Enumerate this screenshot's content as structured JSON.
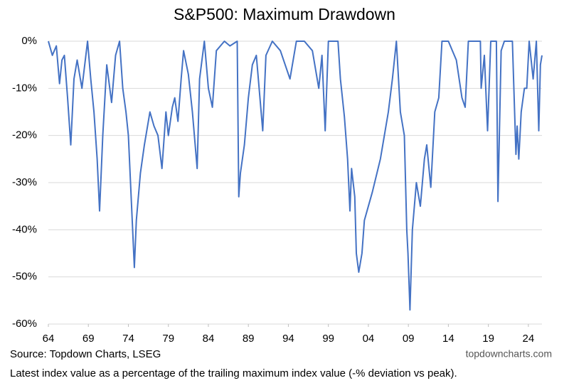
{
  "chart_data": {
    "type": "line",
    "title": "S&P500: Maximum Drawdown",
    "source": "Source: Topdown Charts, LSEG",
    "watermark": "topdowncharts.com",
    "note": "Latest index value as a percentage of the trailing maximum index value (-% deviation vs peak).",
    "color": "#4472c4",
    "grid": true,
    "xlim": [
      1964,
      2025.7
    ],
    "xticks": [
      {
        "value": 1964,
        "label": "64"
      },
      {
        "value": 1969,
        "label": "69"
      },
      {
        "value": 1974,
        "label": "74"
      },
      {
        "value": 1979,
        "label": "79"
      },
      {
        "value": 1984,
        "label": "84"
      },
      {
        "value": 1989,
        "label": "89"
      },
      {
        "value": 1994,
        "label": "94"
      },
      {
        "value": 1999,
        "label": "99"
      },
      {
        "value": 2004,
        "label": "04"
      },
      {
        "value": 2009,
        "label": "09"
      },
      {
        "value": 2014,
        "label": "14"
      },
      {
        "value": 2019,
        "label": "19"
      },
      {
        "value": 2024,
        "label": "24"
      }
    ],
    "ylim": [
      -60,
      0
    ],
    "yticks": [
      {
        "value": -60,
        "label": "-60%"
      },
      {
        "value": -50,
        "label": "-50%"
      },
      {
        "value": -40,
        "label": "-40%"
      },
      {
        "value": -30,
        "label": "-30%"
      },
      {
        "value": -20,
        "label": "-20%"
      },
      {
        "value": -10,
        "label": "-10%"
      },
      {
        "value": 0,
        "label": "0%"
      }
    ],
    "x": [
      1964,
      1964.5,
      1965,
      1965.4,
      1965.7,
      1966,
      1966.4,
      1966.8,
      1967.2,
      1967.6,
      1968.2,
      1968.9,
      1969.3,
      1969.7,
      1970.1,
      1970.4,
      1970.8,
      1971.3,
      1971.9,
      1972.4,
      1972.9,
      1973.3,
      1973.7,
      1974.0,
      1974.4,
      1974.75,
      1975.0,
      1975.5,
      1976.0,
      1976.7,
      1977.2,
      1977.7,
      1978.2,
      1978.7,
      1979.0,
      1979.5,
      1979.8,
      1980.2,
      1980.6,
      1980.9,
      1981.5,
      1982.0,
      1982.6,
      1982.9,
      1983.5,
      1984.0,
      1984.5,
      1985.0,
      1986.0,
      1986.7,
      1987.6,
      1987.8,
      1988.0,
      1988.5,
      1989.0,
      1989.5,
      1990.0,
      1990.8,
      1991.2,
      1992.0,
      1993.0,
      1994.2,
      1995.0,
      1996.0,
      1997.0,
      1997.8,
      1998.2,
      1998.6,
      1999.0,
      2000.2,
      2000.5,
      2001.0,
      2001.4,
      2001.7,
      2001.9,
      2002.3,
      2002.5,
      2002.8,
      2003.2,
      2003.5,
      2004.0,
      2004.5,
      2005.5,
      2006.5,
      2007.0,
      2007.5,
      2008.0,
      2008.5,
      2008.8,
      2008.95,
      2009.2,
      2009.5,
      2010.0,
      2010.5,
      2011.0,
      2011.3,
      2011.8,
      2012.3,
      2012.8,
      2013.2,
      2014.0,
      2015.0,
      2015.7,
      2016.1,
      2016.5,
      2017.0,
      2018.0,
      2018.1,
      2018.5,
      2018.9,
      2019.3,
      2020.0,
      2020.2,
      2020.6,
      2021.0,
      2022.0,
      2022.45,
      2022.6,
      2022.8,
      2023.1,
      2023.5,
      2023.8,
      2024.1,
      2024.6,
      2025.0,
      2025.3,
      2025.5,
      2025.7
    ],
    "values": [
      0,
      -3,
      -1,
      -9,
      -4,
      -3,
      -12,
      -22,
      -8,
      -4,
      -10,
      0,
      -8,
      -15,
      -25,
      -36,
      -20,
      -5,
      -13,
      -3,
      0,
      -10,
      -15,
      -20,
      -35,
      -48,
      -38,
      -28,
      -22,
      -15,
      -18,
      -20,
      -27,
      -15,
      -20,
      -14,
      -12,
      -17,
      -8,
      -2,
      -7,
      -15,
      -27,
      -8,
      0,
      -10,
      -14,
      -2,
      0,
      -1,
      0,
      -33,
      -28,
      -22,
      -12,
      -5,
      -3,
      -19,
      -3,
      0,
      -2,
      -8,
      0,
      0,
      -2,
      -10,
      -3,
      -19,
      0,
      0,
      -8,
      -16,
      -25,
      -36,
      -27,
      -33,
      -45,
      -49,
      -45,
      -38,
      -35,
      -32,
      -25,
      -15,
      -8,
      0,
      -15,
      -20,
      -40,
      -45,
      -57,
      -40,
      -30,
      -35,
      -25,
      -22,
      -31,
      -15,
      -12,
      0,
      0,
      -4,
      -12,
      -14,
      0,
      0,
      0,
      -10,
      -3,
      -19,
      0,
      0,
      -34,
      -2,
      0,
      0,
      -24,
      -18,
      -25,
      -15,
      -10,
      -10,
      0,
      -8,
      0,
      -19,
      -5,
      -3
    ]
  }
}
